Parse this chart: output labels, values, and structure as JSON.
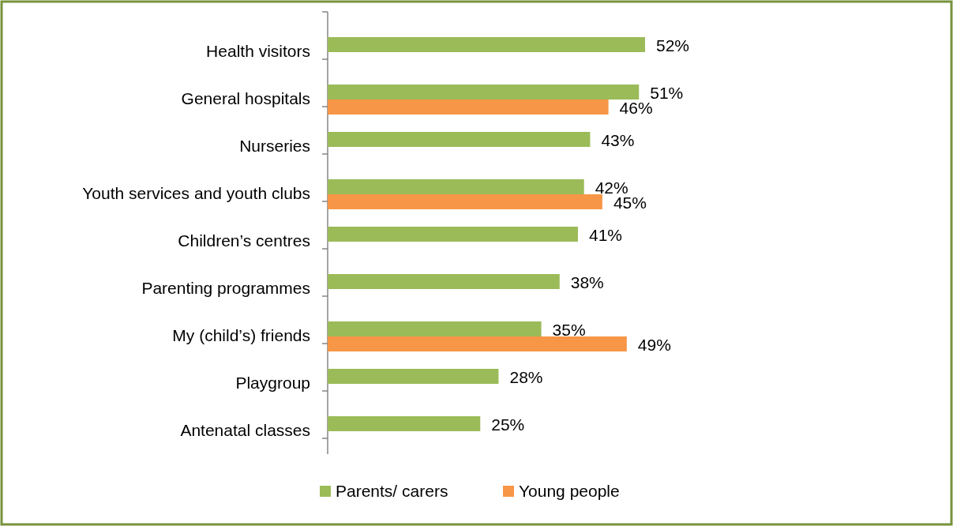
{
  "chart_data": {
    "type": "bar",
    "orientation": "horizontal",
    "categories": [
      "Health visitors",
      "General hospitals",
      "Nurseries",
      "Youth services and youth clubs",
      "Children’s centres",
      "Parenting programmes",
      "My (child’s) friends",
      "Playgroup",
      "Antenatal classes"
    ],
    "series": [
      {
        "name": "Parents/ carers",
        "color": "#9bbb59",
        "values": [
          52,
          51,
          43,
          42,
          41,
          38,
          35,
          28,
          25
        ],
        "value_labels": [
          "52%",
          "51%",
          "43%",
          "42%",
          "41%",
          "38%",
          "35%",
          "28%",
          "25%"
        ]
      },
      {
        "name": "Young people",
        "color": "#f79646",
        "values": [
          null,
          46,
          null,
          45,
          null,
          null,
          49,
          null,
          null
        ],
        "value_labels": [
          null,
          "46%",
          null,
          "45%",
          null,
          null,
          "49%",
          null,
          null
        ]
      }
    ],
    "legend": "bottom"
  }
}
